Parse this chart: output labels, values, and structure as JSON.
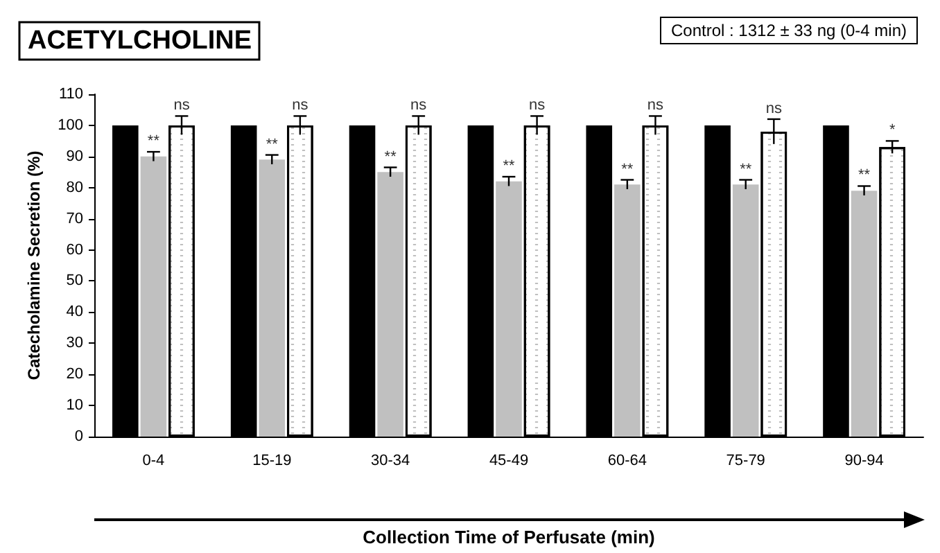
{
  "chart_data": {
    "type": "bar",
    "title": "ACETYLCHOLINE",
    "annotations": [
      "Control : 1312 ± 33 ng (0-4 min)"
    ],
    "xlabel": "Collection Time of Perfusate (min)",
    "ylabel": "Catecholamine Secretion (%)",
    "categories": [
      "0-4",
      "15-19",
      "30-34",
      "45-49",
      "60-64",
      "75-79",
      "90-94"
    ],
    "series": [
      {
        "color": "#000000",
        "values": [
          100,
          100,
          100,
          100,
          100,
          100,
          100
        ]
      },
      {
        "color": "#c0c0c0",
        "values": [
          90,
          89,
          85,
          82,
          81,
          81,
          79
        ],
        "errors": [
          1.5,
          1.5,
          1.5,
          1.5,
          1.5,
          1.5,
          1.5
        ],
        "value_labels": [
          "**",
          "**",
          "**",
          "**",
          "**",
          "**",
          "**"
        ]
      },
      {
        "color": "#ffffff",
        "values": [
          100,
          100,
          100,
          100,
          100,
          98,
          93
        ],
        "errors": [
          3,
          3,
          3,
          3,
          3,
          4,
          2
        ],
        "value_labels": [
          "ns",
          "ns",
          "ns",
          "ns",
          "ns",
          "ns",
          "*"
        ]
      }
    ],
    "ylim": [
      0,
      110
    ],
    "yticks": [
      0,
      10,
      20,
      30,
      40,
      50,
      60,
      70,
      80,
      90,
      100,
      110
    ]
  }
}
